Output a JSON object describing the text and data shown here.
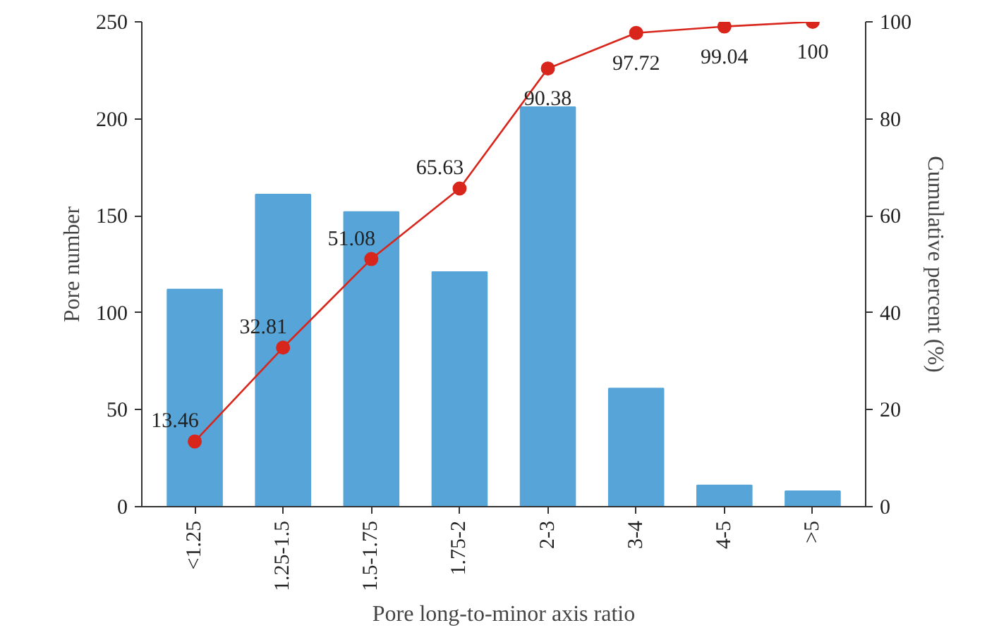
{
  "chart_data": {
    "type": "bar",
    "xlabel": "Pore long-to-minor axis ratio",
    "ylabel": "Pore number",
    "y2label": "Cumulative percent (%)",
    "categories": [
      "<1.25",
      "1.25-1.5",
      "1.5-1.75",
      "1.75-2",
      "2-3",
      "3-4",
      "4-5",
      ">5"
    ],
    "series": [
      {
        "color": "#56a4d8",
        "values": [
          112,
          161,
          152,
          121,
          206,
          61,
          11,
          8
        ]
      },
      {
        "type": "line",
        "axis": "y2",
        "color": "#d9261c",
        "marker": "circle",
        "values": [
          13.46,
          32.81,
          51.08,
          65.63,
          90.38,
          97.72,
          99.04,
          100
        ],
        "value_labels": [
          "13.46",
          "32.81",
          "51.08",
          "65.63",
          "90.38",
          "97.72",
          "99.04",
          "100"
        ]
      }
    ],
    "ylim": [
      0,
      250
    ],
    "yticks": [
      0,
      50,
      100,
      150,
      200,
      250
    ],
    "y2lim": [
      0,
      100
    ],
    "y2ticks": [
      0,
      20,
      40,
      60,
      80,
      100
    ],
    "grid": false
  }
}
